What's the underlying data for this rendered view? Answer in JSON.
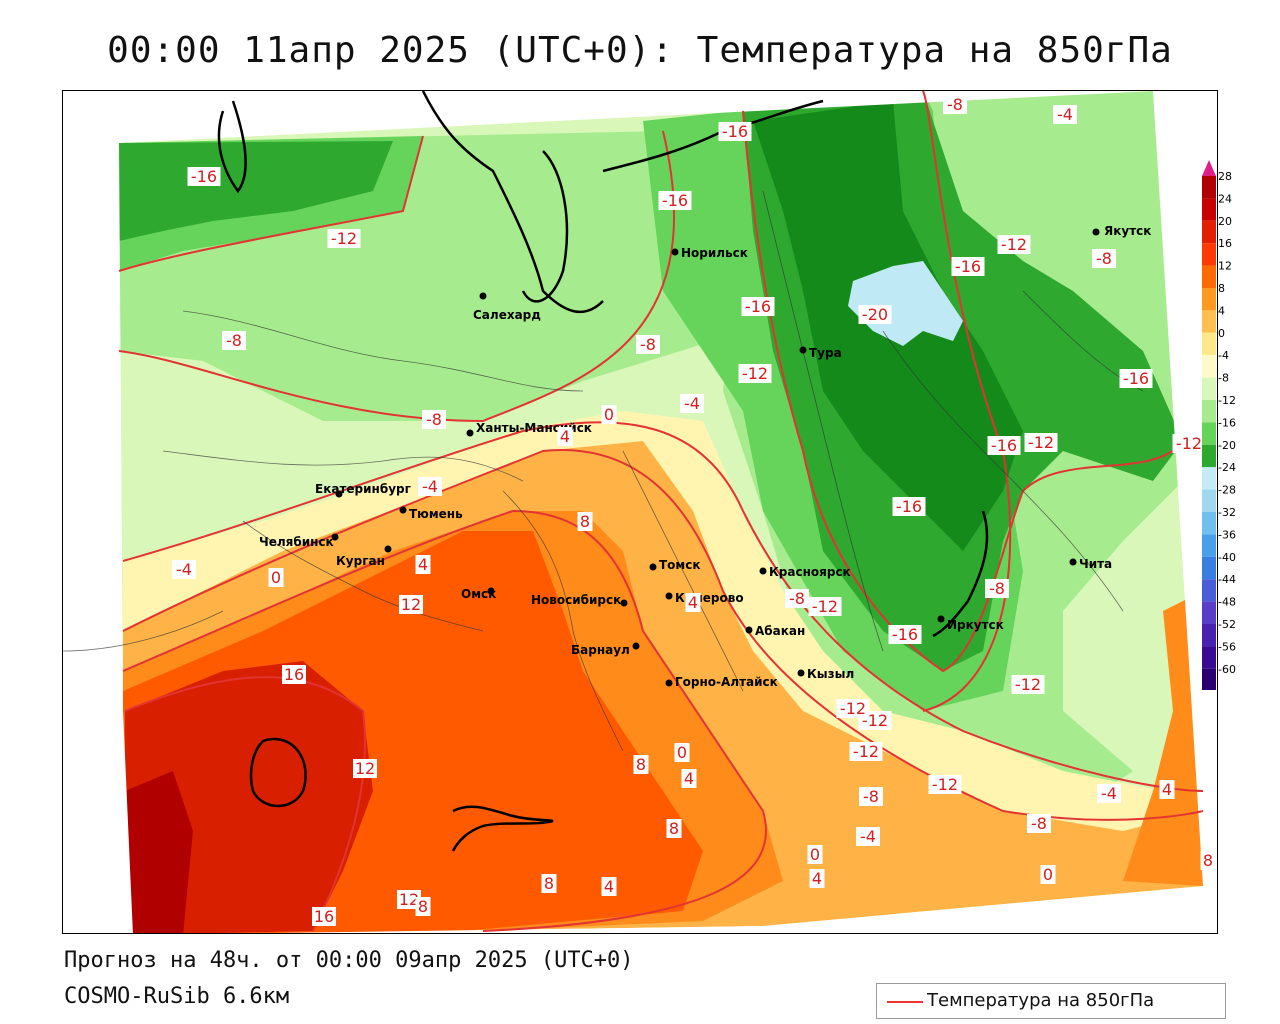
{
  "title": "00:00 11апр 2025 (UTC+0): Температура на 850гПа",
  "footer": {
    "forecast": "Прогноз на 48ч. от 00:00 09апр 2025 (UTC+0)",
    "model": "COSMO-RuSib 6.6км"
  },
  "legend": {
    "label": "Температура на 850гПа",
    "line_color": "#e33333"
  },
  "colors": {
    "very_dark_red": "#b00000",
    "dark_red": "#d82000",
    "red_orange": "#ff5a00",
    "orange": "#ff8c1a",
    "light_orange": "#ffb347",
    "yellow": "#ffe082",
    "pale_yellow": "#fff5b0",
    "pale_green": "#d8f7b8",
    "light_green": "#a6ec8e",
    "green": "#66d45a",
    "dark_green": "#2ea82e",
    "darkest_green": "#138a1a",
    "ice_blue": "#bfe9f5",
    "contour": "#e33333"
  },
  "scale": {
    "ticks": [
      "28",
      "24",
      "20",
      "16",
      "12",
      "8",
      "4",
      "0",
      "-4",
      "-8",
      "-12",
      "-16",
      "-20",
      "-24",
      "-28",
      "-32",
      "-36",
      "-40",
      "-44",
      "-48",
      "-52",
      "-56",
      "-60"
    ],
    "colors": [
      "#b00000",
      "#c80000",
      "#e02000",
      "#ff3a00",
      "#ff6a00",
      "#ff9a20",
      "#ffc050",
      "#ffe88a",
      "#fffbc8",
      "#d8f7b8",
      "#a6ec8e",
      "#66d45a",
      "#2ea82e",
      "#c5ecf5",
      "#a0d8f0",
      "#70c0ee",
      "#4aa0e8",
      "#3a7fe0",
      "#4a5ed8",
      "#5a3ec8",
      "#4a20b0",
      "#3a0a90",
      "#2a0070"
    ],
    "top_arrow_color": "#e0208a",
    "bottom_arrow_color": "#7a2ad0"
  },
  "cities": [
    {
      "name": "Якутск"
    },
    {
      "name": "Норильск"
    },
    {
      "name": "Салехард"
    },
    {
      "name": "Тура"
    },
    {
      "name": "Ханты-Мансийск"
    },
    {
      "name": "Екатеринбург"
    },
    {
      "name": "Тюмень"
    },
    {
      "name": "Челябинск"
    },
    {
      "name": "Курган"
    },
    {
      "name": "Омск"
    },
    {
      "name": "Новосибирск"
    },
    {
      "name": "Томск"
    },
    {
      "name": "Кемерово"
    },
    {
      "name": "Барнаул"
    },
    {
      "name": "Красноярск"
    },
    {
      "name": "Абакан"
    },
    {
      "name": "Горно-Алтайск"
    },
    {
      "name": "Кызыл"
    },
    {
      "name": "Иркутск"
    },
    {
      "name": "Чита"
    }
  ],
  "contour_labels": [
    {
      "text": "-16"
    },
    {
      "text": "-12"
    },
    {
      "text": "-16"
    },
    {
      "text": "-16"
    },
    {
      "text": "-8"
    },
    {
      "text": "-4"
    },
    {
      "text": "-12"
    },
    {
      "text": "-16"
    },
    {
      "text": "-8"
    },
    {
      "text": "-8"
    },
    {
      "text": "-16"
    },
    {
      "text": "-20"
    },
    {
      "text": "-8"
    },
    {
      "text": "-12"
    },
    {
      "text": "-16"
    },
    {
      "text": "-4"
    },
    {
      "text": "-8"
    },
    {
      "text": "0"
    },
    {
      "text": "4"
    },
    {
      "text": "-12"
    },
    {
      "text": "-16"
    },
    {
      "text": "-12"
    },
    {
      "text": "-4"
    },
    {
      "text": "-16"
    },
    {
      "text": "8"
    },
    {
      "text": "-4"
    },
    {
      "text": "0"
    },
    {
      "text": "4"
    },
    {
      "text": "12"
    },
    {
      "text": "-8"
    },
    {
      "text": "-12"
    },
    {
      "text": "4"
    },
    {
      "text": "-16"
    },
    {
      "text": "-8"
    },
    {
      "text": "-12"
    },
    {
      "text": "16"
    },
    {
      "text": "-12"
    },
    {
      "text": "-12"
    },
    {
      "text": "12"
    },
    {
      "text": "8"
    },
    {
      "text": "4"
    },
    {
      "text": "0"
    },
    {
      "text": "-12"
    },
    {
      "text": "-8"
    },
    {
      "text": "-4"
    },
    {
      "text": "4"
    },
    {
      "text": "8"
    },
    {
      "text": "-4"
    },
    {
      "text": "-8"
    },
    {
      "text": "0"
    },
    {
      "text": "4"
    },
    {
      "text": "8"
    },
    {
      "text": "4"
    },
    {
      "text": "12"
    },
    {
      "text": "8"
    },
    {
      "text": "16"
    },
    {
      "text": "0"
    },
    {
      "text": "8"
    },
    {
      "text": "-12"
    }
  ]
}
